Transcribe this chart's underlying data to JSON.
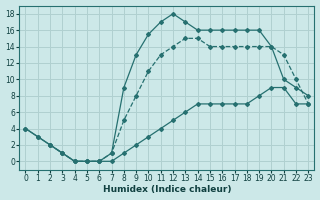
{
  "xlabel": "Humidex (Indice chaleur)",
  "bg_color": "#cce8e8",
  "grid_color": "#b0d0d0",
  "line_color": "#267070",
  "xlim": [
    -0.5,
    23.5
  ],
  "ylim": [
    -1,
    19
  ],
  "xticks": [
    0,
    1,
    2,
    3,
    4,
    5,
    6,
    7,
    8,
    9,
    10,
    11,
    12,
    13,
    14,
    15,
    16,
    17,
    18,
    19,
    20,
    21,
    22,
    23
  ],
  "yticks": [
    0,
    2,
    4,
    6,
    8,
    10,
    12,
    14,
    16,
    18
  ],
  "line_top_x": [
    0,
    1,
    2,
    3,
    4,
    5,
    6,
    7,
    8,
    9,
    10,
    11,
    12,
    13,
    14,
    15,
    16,
    17,
    18,
    19,
    20,
    21,
    22,
    23
  ],
  "line_top_y": [
    4,
    3,
    2,
    1,
    0,
    0,
    0,
    1,
    9,
    13,
    15.5,
    17,
    18,
    17,
    16,
    16,
    16,
    16,
    16,
    16,
    14,
    10,
    9,
    8
  ],
  "line_bot_x": [
    0,
    1,
    2,
    3,
    4,
    5,
    6,
    7,
    8,
    9,
    10,
    11,
    12,
    13,
    14,
    15,
    16,
    17,
    18,
    19,
    20,
    21,
    22,
    23
  ],
  "line_bot_y": [
    4,
    3,
    2,
    1,
    0,
    0,
    0,
    0,
    1,
    2,
    3,
    4,
    5,
    6,
    7,
    7,
    7,
    7,
    7,
    8,
    9,
    9,
    7,
    7
  ],
  "line_mid_x": [
    2,
    3,
    4,
    5,
    6,
    7,
    8,
    9,
    10,
    11,
    12,
    13,
    14,
    15,
    16,
    17,
    18,
    19,
    20,
    21,
    22,
    23
  ],
  "line_mid_y": [
    2,
    1,
    0,
    0,
    0,
    1,
    5,
    8,
    11,
    13,
    14,
    15,
    15,
    14,
    14,
    14,
    14,
    14,
    14,
    13,
    10,
    7
  ]
}
